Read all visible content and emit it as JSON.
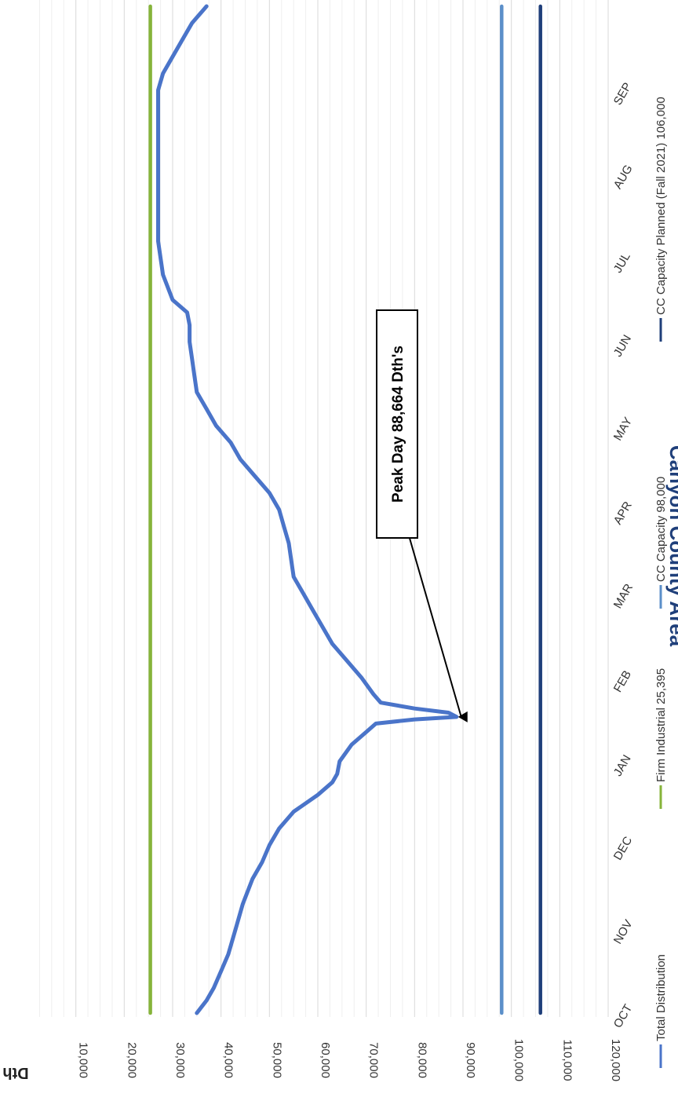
{
  "chart_data": {
    "type": "line",
    "title": "Canyon County Area",
    "ylabel": "Dth",
    "xlabel": "",
    "ylim": [
      0,
      120000
    ],
    "yticks": [
      10000,
      20000,
      30000,
      40000,
      50000,
      60000,
      70000,
      80000,
      90000,
      100000,
      110000,
      120000
    ],
    "ytick_labels": [
      "10,000",
      "20,000",
      "30,000",
      "40,000",
      "50,000",
      "60,000",
      "70,000",
      "80,000",
      "90,000",
      "100,000",
      "110,000",
      "120,000"
    ],
    "categories": [
      "OCT",
      "NOV",
      "DEC",
      "JAN",
      "FEB",
      "MAR",
      "APR",
      "MAY",
      "JUN",
      "JUL",
      "AUG",
      "SEP"
    ],
    "grid": true,
    "legend_position": "bottom",
    "series": [
      {
        "name": "Total Distribution",
        "color": "#4a74c9",
        "x": [
          0,
          0.15,
          0.3,
          0.5,
          0.7,
          1.0,
          1.3,
          1.6,
          1.8,
          2.0,
          2.2,
          2.4,
          2.6,
          2.75,
          2.85,
          3.0,
          3.2,
          3.35,
          3.45,
          3.5,
          3.53,
          3.58,
          3.63,
          3.7,
          3.8,
          4.0,
          4.2,
          4.4,
          4.6,
          4.8,
          5.0,
          5.2,
          5.4,
          5.6,
          5.8,
          6.0,
          6.2,
          6.4,
          6.6,
          6.8,
          7.0,
          7.2,
          7.4,
          7.6,
          7.8,
          8.0,
          8.2,
          8.35,
          8.5,
          8.8,
          9.2,
          9.6,
          10.0,
          10.4,
          10.8,
          11.0,
          11.2,
          11.4,
          11.6,
          11.8,
          12.0
        ],
        "y": [
          35000,
          37000,
          38500,
          40000,
          41500,
          43000,
          44500,
          46500,
          48500,
          50000,
          52000,
          55000,
          60000,
          63000,
          64000,
          64500,
          67000,
          70000,
          72000,
          80000,
          88664,
          87000,
          80000,
          73000,
          71500,
          69000,
          66000,
          63000,
          61000,
          59000,
          57000,
          55000,
          54500,
          54000,
          53000,
          52000,
          50000,
          47000,
          44000,
          42000,
          39000,
          37000,
          35000,
          34500,
          34000,
          33500,
          33500,
          33000,
          30000,
          28000,
          27000,
          27000,
          27000,
          27000,
          27000,
          27000,
          28000,
          30000,
          32000,
          34000,
          37000
        ]
      },
      {
        "name": "Firm Industrial 25,395",
        "color": "#86b43a",
        "x": [
          0,
          12
        ],
        "y": [
          25395,
          25395
        ]
      },
      {
        "name": "CC Capacity 98,000",
        "color": "#5b8fc9",
        "x": [
          0,
          12
        ],
        "y": [
          98000,
          98000
        ]
      },
      {
        "name": "CC Capacity Planned (Fall 2021) 106,000",
        "color": "#1f3f7a",
        "x": [
          0,
          12
        ],
        "y": [
          106000,
          106000
        ]
      }
    ],
    "annotation": {
      "text": "Peak Day 88,664 Dth's",
      "x": 3.53,
      "y": 88664
    }
  }
}
